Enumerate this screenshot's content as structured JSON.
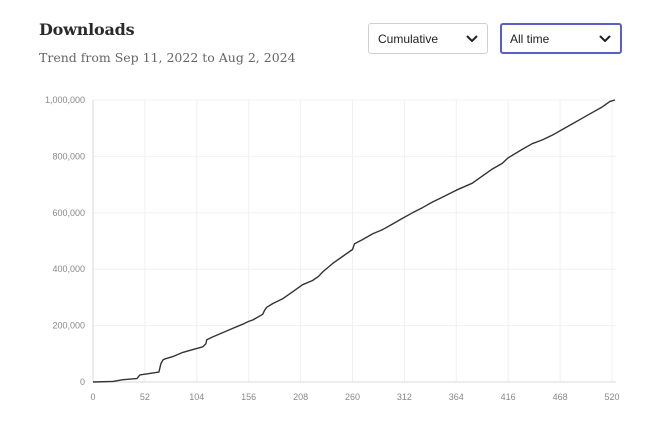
{
  "header": {
    "title": "Downloads",
    "subtitle": "Trend from Sep 11, 2022 to Aug 2, 2024"
  },
  "controls": {
    "mode_select": {
      "value": "Cumulative"
    },
    "range_select": {
      "value": "All time"
    }
  },
  "icons": {
    "dropdown": "chevron-down-icon"
  },
  "colors": {
    "line": "#333333",
    "grid": "#f0f0f0",
    "focus_border": "#5a5fc7"
  },
  "chart_data": {
    "type": "line",
    "title": "",
    "xlabel": "",
    "ylabel": "",
    "xlim": [
      0,
      520
    ],
    "ylim": [
      0,
      1000000
    ],
    "x_ticks": [
      0,
      52,
      104,
      156,
      208,
      260,
      312,
      364,
      416,
      468,
      520
    ],
    "y_ticks": [
      0,
      200000,
      400000,
      600000,
      800000,
      1000000
    ],
    "x_tick_labels": [
      "0",
      "52",
      "104",
      "156",
      "208",
      "260",
      "312",
      "364",
      "416",
      "468",
      "520"
    ],
    "y_tick_labels": [
      "0",
      "200,000",
      "400,000",
      "600,000",
      "800,000",
      "1,000,000"
    ],
    "grid": true,
    "series": [
      {
        "x": [
          0,
          20,
          30,
          36,
          44,
          47,
          66,
          68,
          70,
          72,
          80,
          90,
          100,
          110,
          113,
          114,
          120,
          130,
          140,
          150,
          156,
          160,
          170,
          172,
          174,
          180,
          190,
          200,
          210,
          220,
          226,
          230,
          240,
          250,
          260,
          262,
          270,
          280,
          290,
          300,
          310,
          320,
          330,
          340,
          350,
          364,
          380,
          390,
          400,
          410,
          416,
          430,
          440,
          450,
          460,
          470,
          480,
          490,
          500,
          510,
          518,
          523
        ],
        "values": [
          0,
          2000,
          8000,
          10000,
          12000,
          25000,
          35000,
          65000,
          78000,
          82000,
          90000,
          105000,
          115000,
          125000,
          135000,
          150000,
          160000,
          175000,
          190000,
          205000,
          215000,
          220000,
          240000,
          255000,
          265000,
          278000,
          295000,
          320000,
          345000,
          360000,
          375000,
          390000,
          420000,
          445000,
          470000,
          490000,
          505000,
          525000,
          540000,
          560000,
          580000,
          600000,
          618000,
          638000,
          655000,
          680000,
          705000,
          730000,
          755000,
          775000,
          795000,
          825000,
          845000,
          858000,
          875000,
          895000,
          915000,
          935000,
          955000,
          975000,
          995000,
          1000000
        ]
      }
    ]
  }
}
